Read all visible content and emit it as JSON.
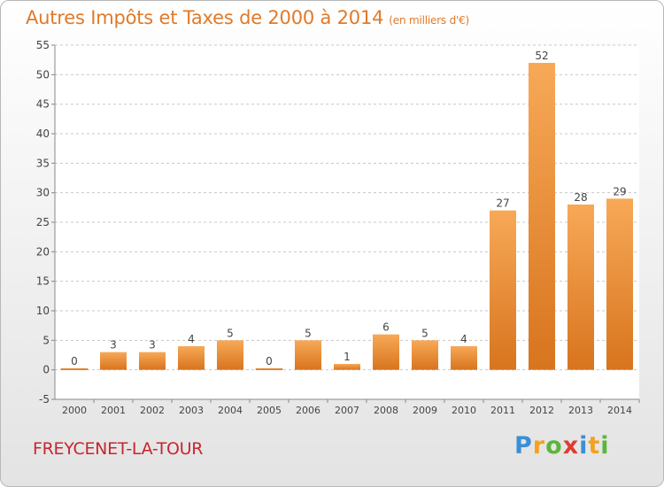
{
  "title": "Autres Impôts et Taxes de 2000 à 2014",
  "unit": "(en milliers d'€)",
  "city": "FREYCENET-LA-TOUR",
  "logo": {
    "text": "Proxiti",
    "letters": [
      {
        "char": "P",
        "color": "#3a8fd6"
      },
      {
        "char": "r",
        "color": "#f3a21f"
      },
      {
        "char": "o",
        "color": "#5db53a"
      },
      {
        "char": "x",
        "color": "#e03c31"
      },
      {
        "char": "i",
        "color": "#3a8fd6"
      },
      {
        "char": "t",
        "color": "#f3a21f"
      },
      {
        "char": "i",
        "color": "#5db53a"
      }
    ]
  },
  "colors": {
    "title": "#e07a2a",
    "city": "#c8262f",
    "bar_light": "#f7a957",
    "bar_dark": "#d8741e"
  },
  "chart_data": {
    "type": "bar",
    "categories": [
      "2000",
      "2001",
      "2002",
      "2003",
      "2004",
      "2005",
      "2006",
      "2007",
      "2008",
      "2009",
      "2010",
      "2011",
      "2012",
      "2013",
      "2014"
    ],
    "values": [
      0,
      3,
      3,
      4,
      5,
      0,
      5,
      1,
      6,
      5,
      4,
      27,
      52,
      28,
      29
    ],
    "ylim": [
      -5,
      55
    ],
    "yticks": [
      -5,
      0,
      5,
      10,
      15,
      20,
      25,
      30,
      35,
      40,
      45,
      50,
      55
    ],
    "grid": true,
    "legend": "none"
  }
}
